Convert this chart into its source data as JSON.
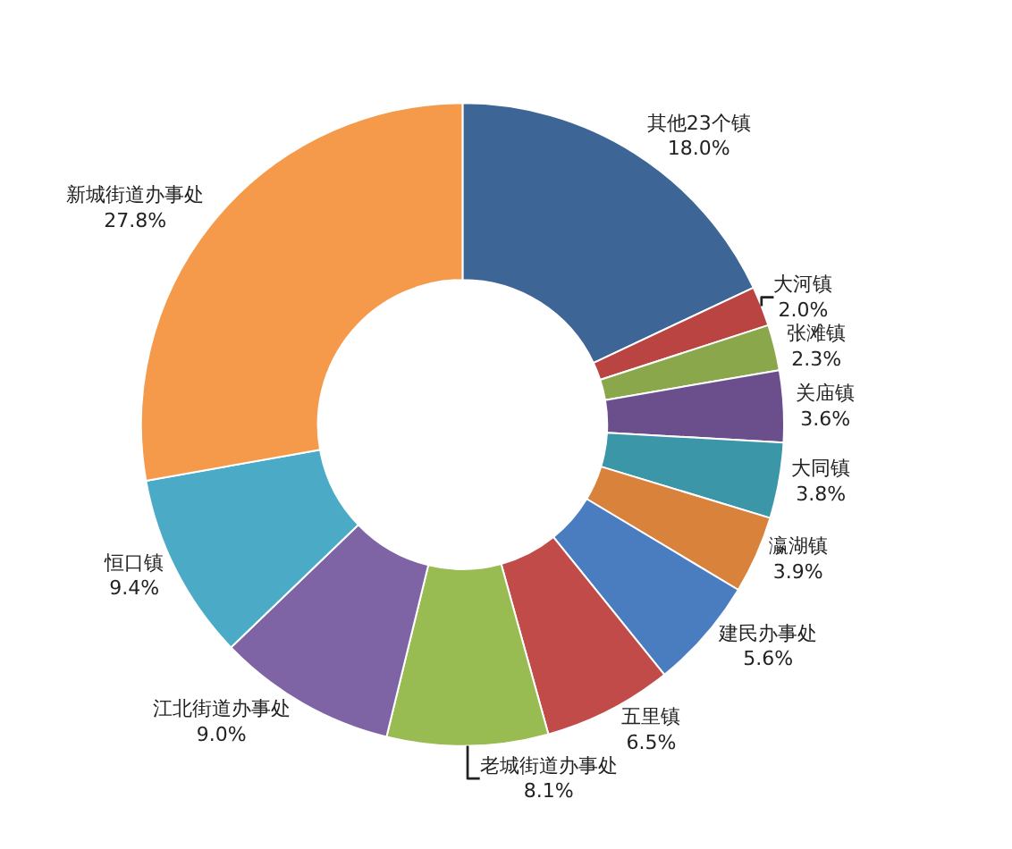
{
  "chart_data": {
    "type": "donut",
    "categories": [
      "其他23个镇",
      "大河镇",
      "张滩镇",
      "关庙镇",
      "大同镇",
      "瀛湖镇",
      "建民办事处",
      "五里镇",
      "老城街道办事处",
      "江北街道办事处",
      "恒口镇",
      "新城街道办事处"
    ],
    "values": [
      18.0,
      2.0,
      2.3,
      3.6,
      3.8,
      3.9,
      5.6,
      6.5,
      8.1,
      9.0,
      9.4,
      27.8
    ],
    "value_labels": [
      "18.0%",
      "2.0%",
      "2.3%",
      "3.6%",
      "3.8%",
      "3.9%",
      "5.6%",
      "6.5%",
      "8.1%",
      "9.0%",
      "9.4%",
      "27.8%"
    ],
    "colors": [
      "#3d6596",
      "#b94442",
      "#8aa84b",
      "#6b4f8d",
      "#3b97a8",
      "#d8823b",
      "#4a7dc0",
      "#c14b49",
      "#98bb52",
      "#7e63a5",
      "#4babc7",
      "#f59a4a"
    ],
    "legend": false
  }
}
